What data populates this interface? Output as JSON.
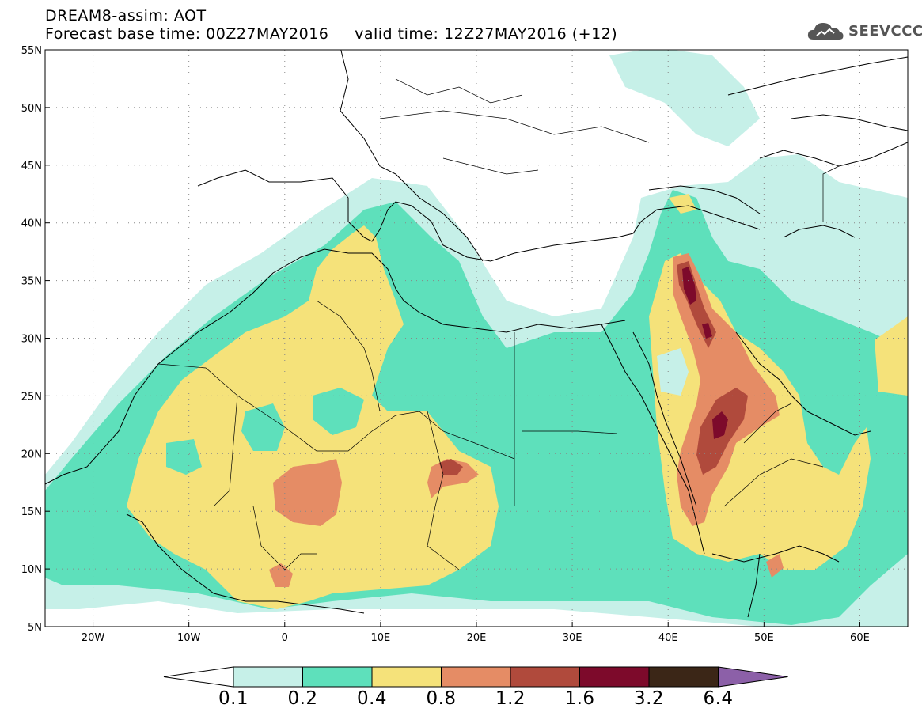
{
  "header": {
    "line1": "DREAM8-assim: AOT",
    "line2": "Forecast base time: 00Z27MAY2016     valid time: 12Z27MAY2016 (+12)"
  },
  "logo": {
    "text": "SEEVCCC",
    "icon": "cloud-icon"
  },
  "map": {
    "lon_range": [
      -25,
      65
    ],
    "lat_range": [
      5,
      55
    ],
    "lat_ticks": [
      {
        "value": 55,
        "label": "55N"
      },
      {
        "value": 50,
        "label": "50N"
      },
      {
        "value": 45,
        "label": "45N"
      },
      {
        "value": 40,
        "label": "40N"
      },
      {
        "value": 35,
        "label": "35N"
      },
      {
        "value": 30,
        "label": "30N"
      },
      {
        "value": 25,
        "label": "25N"
      },
      {
        "value": 20,
        "label": "20N"
      },
      {
        "value": 15,
        "label": "15N"
      },
      {
        "value": 10,
        "label": "10N"
      },
      {
        "value": 5,
        "label": "5N"
      }
    ],
    "lon_ticks": [
      {
        "value": -20,
        "label": "20W"
      },
      {
        "value": -10,
        "label": "10W"
      },
      {
        "value": 0,
        "label": "0"
      },
      {
        "value": 10,
        "label": "10E"
      },
      {
        "value": 20,
        "label": "20E"
      },
      {
        "value": 30,
        "label": "30E"
      },
      {
        "value": 40,
        "label": "40E"
      },
      {
        "value": 50,
        "label": "50E"
      },
      {
        "value": 60,
        "label": "60E"
      }
    ],
    "grid": "dotted"
  },
  "colorbar": {
    "colors": [
      "#ffffff",
      "#c6f0e8",
      "#5ee0bb",
      "#f5e27a",
      "#e58c65",
      "#b04a3c",
      "#7d0a2b",
      "#3b2617",
      "#8c60a8"
    ],
    "labels": [
      "0.1",
      "0.2",
      "0.4",
      "0.8",
      "1.2",
      "1.6",
      "3.2",
      "6.4"
    ]
  }
}
